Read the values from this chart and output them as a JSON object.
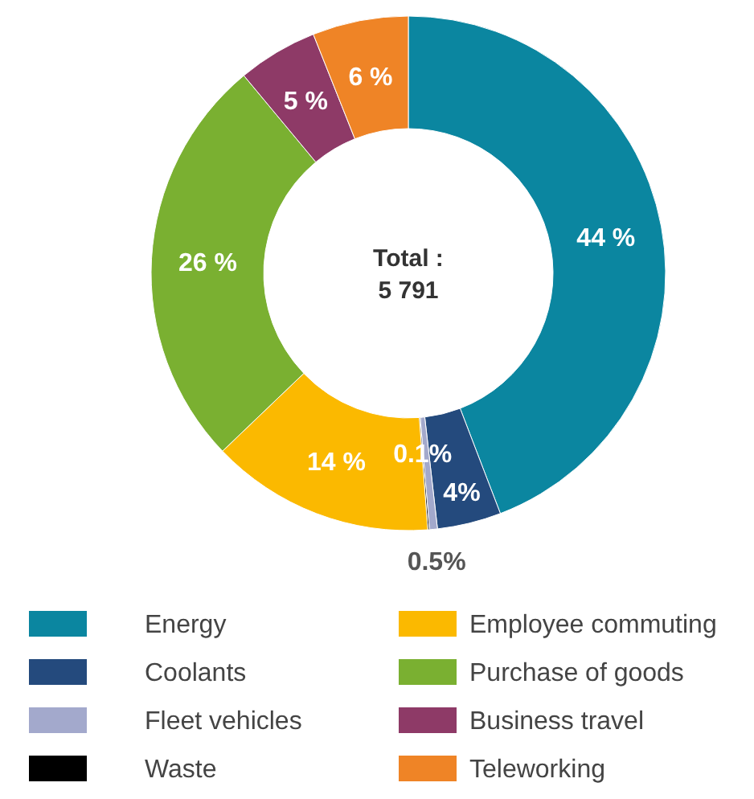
{
  "chart_data": {
    "type": "donut",
    "categories": [
      "Energy",
      "Coolants",
      "Fleet vehicles",
      "Waste",
      "Employee commuting",
      "Purchase of goods",
      "Business travel",
      "Teleworking"
    ],
    "values": [
      44,
      4,
      0.5,
      0.1,
      14,
      26,
      5,
      6
    ],
    "value_labels": [
      "44 %",
      "4%",
      "0.5%",
      "0.1%",
      "14 %",
      "26 %",
      "5 %",
      "6 %"
    ],
    "colors": [
      "#0b86a0",
      "#244a7d",
      "#a3a9cc",
      "#000000",
      "#fbb900",
      "#7ab031",
      "#8e3a67",
      "#ef8426"
    ],
    "annotations": [
      "Total :",
      "5 791"
    ],
    "legend": "bottom"
  }
}
